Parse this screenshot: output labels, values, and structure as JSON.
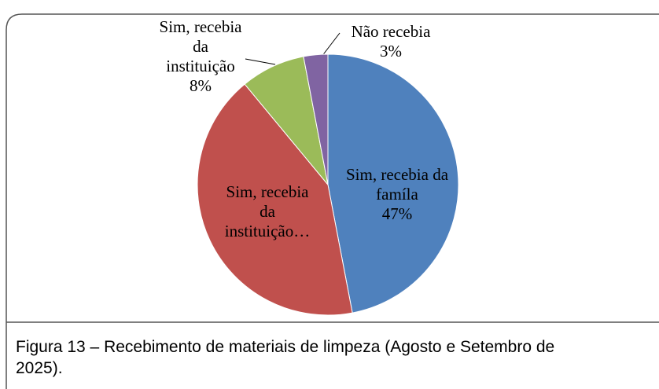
{
  "chart_data": {
    "type": "pie",
    "categories": [
      "Sim, recebia da famíla",
      "Sim, recebia da instituição…",
      "Sim, recebia da instituição",
      "Não recebia"
    ],
    "values": [
      47,
      42,
      8,
      3
    ],
    "value_labels": [
      "47%",
      null,
      "8%",
      "3%"
    ],
    "colors": [
      "#4f81bd",
      "#c0504d",
      "#9bbb59",
      "#8064a2"
    ],
    "caption": "Figura 13 – Recebimento de materiais de limpeza (Agosto e Setembro de 2025)."
  }
}
